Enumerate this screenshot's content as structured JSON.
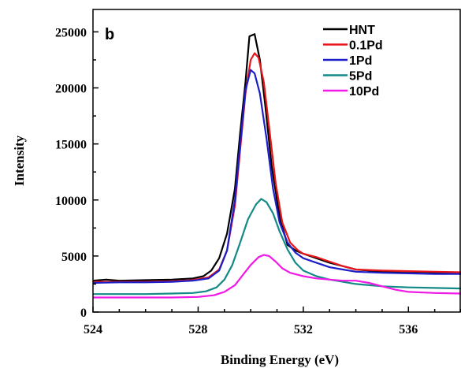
{
  "chart_data": {
    "type": "line",
    "panel_label": "b",
    "xlabel": "Binding Energy (eV)",
    "ylabel": "Intensity",
    "xlim": [
      524,
      538
    ],
    "ylim": [
      0,
      27000
    ],
    "x_ticks": [
      524,
      528,
      532,
      536
    ],
    "y_ticks": [
      0,
      5000,
      10000,
      15000,
      20000,
      25000
    ],
    "legend_position": "top-right",
    "grid": false,
    "series": [
      {
        "name": "HNT",
        "color": "#000000",
        "points": [
          [
            524,
            2800
          ],
          [
            524.5,
            2900
          ],
          [
            525,
            2800
          ],
          [
            526,
            2850
          ],
          [
            527,
            2900
          ],
          [
            527.8,
            3000
          ],
          [
            528.2,
            3200
          ],
          [
            528.5,
            3700
          ],
          [
            528.8,
            4800
          ],
          [
            529.1,
            7000
          ],
          [
            529.4,
            11000
          ],
          [
            529.6,
            16000
          ],
          [
            529.8,
            20500
          ],
          [
            529.95,
            24600
          ],
          [
            530.15,
            24800
          ],
          [
            530.35,
            22500
          ],
          [
            530.55,
            18500
          ],
          [
            530.8,
            13000
          ],
          [
            531.1,
            8500
          ],
          [
            531.4,
            6000
          ],
          [
            531.7,
            5500
          ],
          [
            532,
            5200
          ],
          [
            532.5,
            4800
          ],
          [
            533,
            4400
          ],
          [
            533.5,
            4100
          ],
          [
            534,
            3800
          ],
          [
            535,
            3600
          ],
          [
            536,
            3600
          ],
          [
            537,
            3550
          ],
          [
            538,
            3500
          ]
        ]
      },
      {
        "name": "0.1Pd",
        "color": "#e8161b",
        "points": [
          [
            524,
            2700
          ],
          [
            525,
            2700
          ],
          [
            526,
            2700
          ],
          [
            527,
            2750
          ],
          [
            527.8,
            2850
          ],
          [
            528.4,
            3100
          ],
          [
            528.8,
            3800
          ],
          [
            529.1,
            5500
          ],
          [
            529.4,
            9500
          ],
          [
            529.6,
            14500
          ],
          [
            529.8,
            19500
          ],
          [
            530,
            22500
          ],
          [
            530.15,
            23100
          ],
          [
            530.3,
            22700
          ],
          [
            530.5,
            20500
          ],
          [
            530.7,
            16500
          ],
          [
            530.95,
            11500
          ],
          [
            531.2,
            8000
          ],
          [
            531.5,
            6200
          ],
          [
            531.8,
            5500
          ],
          [
            532,
            5200
          ],
          [
            532.5,
            4900
          ],
          [
            533,
            4500
          ],
          [
            533.5,
            4100
          ],
          [
            534,
            3800
          ],
          [
            535,
            3700
          ],
          [
            536,
            3650
          ],
          [
            537,
            3600
          ],
          [
            538,
            3550
          ]
        ]
      },
      {
        "name": "1Pd",
        "color": "#1c1ec8",
        "points": [
          [
            524,
            2600
          ],
          [
            525,
            2650
          ],
          [
            526,
            2650
          ],
          [
            527,
            2700
          ],
          [
            527.8,
            2800
          ],
          [
            528.4,
            3000
          ],
          [
            528.8,
            3700
          ],
          [
            529.1,
            5500
          ],
          [
            529.4,
            10000
          ],
          [
            529.6,
            15000
          ],
          [
            529.8,
            19800
          ],
          [
            530,
            21600
          ],
          [
            530.15,
            21300
          ],
          [
            530.35,
            19500
          ],
          [
            530.6,
            15500
          ],
          [
            530.85,
            11000
          ],
          [
            531.1,
            8000
          ],
          [
            531.4,
            6200
          ],
          [
            531.7,
            5300
          ],
          [
            532,
            4800
          ],
          [
            532.5,
            4400
          ],
          [
            533,
            4000
          ],
          [
            533.5,
            3800
          ],
          [
            534,
            3600
          ],
          [
            535,
            3500
          ],
          [
            536,
            3450
          ],
          [
            537,
            3400
          ],
          [
            538,
            3400
          ]
        ]
      },
      {
        "name": "5Pd",
        "color": "#138a87",
        "points": [
          [
            524,
            1600
          ],
          [
            525,
            1600
          ],
          [
            526,
            1600
          ],
          [
            527,
            1650
          ],
          [
            527.8,
            1700
          ],
          [
            528.3,
            1850
          ],
          [
            528.7,
            2200
          ],
          [
            529,
            2900
          ],
          [
            529.3,
            4200
          ],
          [
            529.6,
            6200
          ],
          [
            529.9,
            8300
          ],
          [
            530.2,
            9600
          ],
          [
            530.4,
            10100
          ],
          [
            530.6,
            9800
          ],
          [
            530.85,
            8800
          ],
          [
            531.1,
            7200
          ],
          [
            531.4,
            5600
          ],
          [
            531.7,
            4400
          ],
          [
            532,
            3700
          ],
          [
            532.5,
            3200
          ],
          [
            533,
            2900
          ],
          [
            533.5,
            2700
          ],
          [
            534,
            2500
          ],
          [
            535,
            2300
          ],
          [
            536,
            2200
          ],
          [
            537,
            2150
          ],
          [
            538,
            2100
          ]
        ]
      },
      {
        "name": "10Pd",
        "color": "#f019e6",
        "points": [
          [
            524,
            1300
          ],
          [
            525,
            1300
          ],
          [
            526,
            1300
          ],
          [
            527,
            1300
          ],
          [
            528,
            1350
          ],
          [
            528.6,
            1500
          ],
          [
            529,
            1800
          ],
          [
            529.4,
            2400
          ],
          [
            529.7,
            3300
          ],
          [
            530,
            4200
          ],
          [
            530.3,
            4900
          ],
          [
            530.5,
            5100
          ],
          [
            530.7,
            5000
          ],
          [
            530.95,
            4500
          ],
          [
            531.2,
            3900
          ],
          [
            531.5,
            3500
          ],
          [
            532,
            3200
          ],
          [
            532.5,
            3000
          ],
          [
            533,
            2900
          ],
          [
            533.5,
            2800
          ],
          [
            534,
            2800
          ],
          [
            534.5,
            2600
          ],
          [
            535,
            2300
          ],
          [
            535.5,
            2000
          ],
          [
            536,
            1800
          ],
          [
            537,
            1700
          ],
          [
            538,
            1650
          ]
        ]
      }
    ]
  }
}
